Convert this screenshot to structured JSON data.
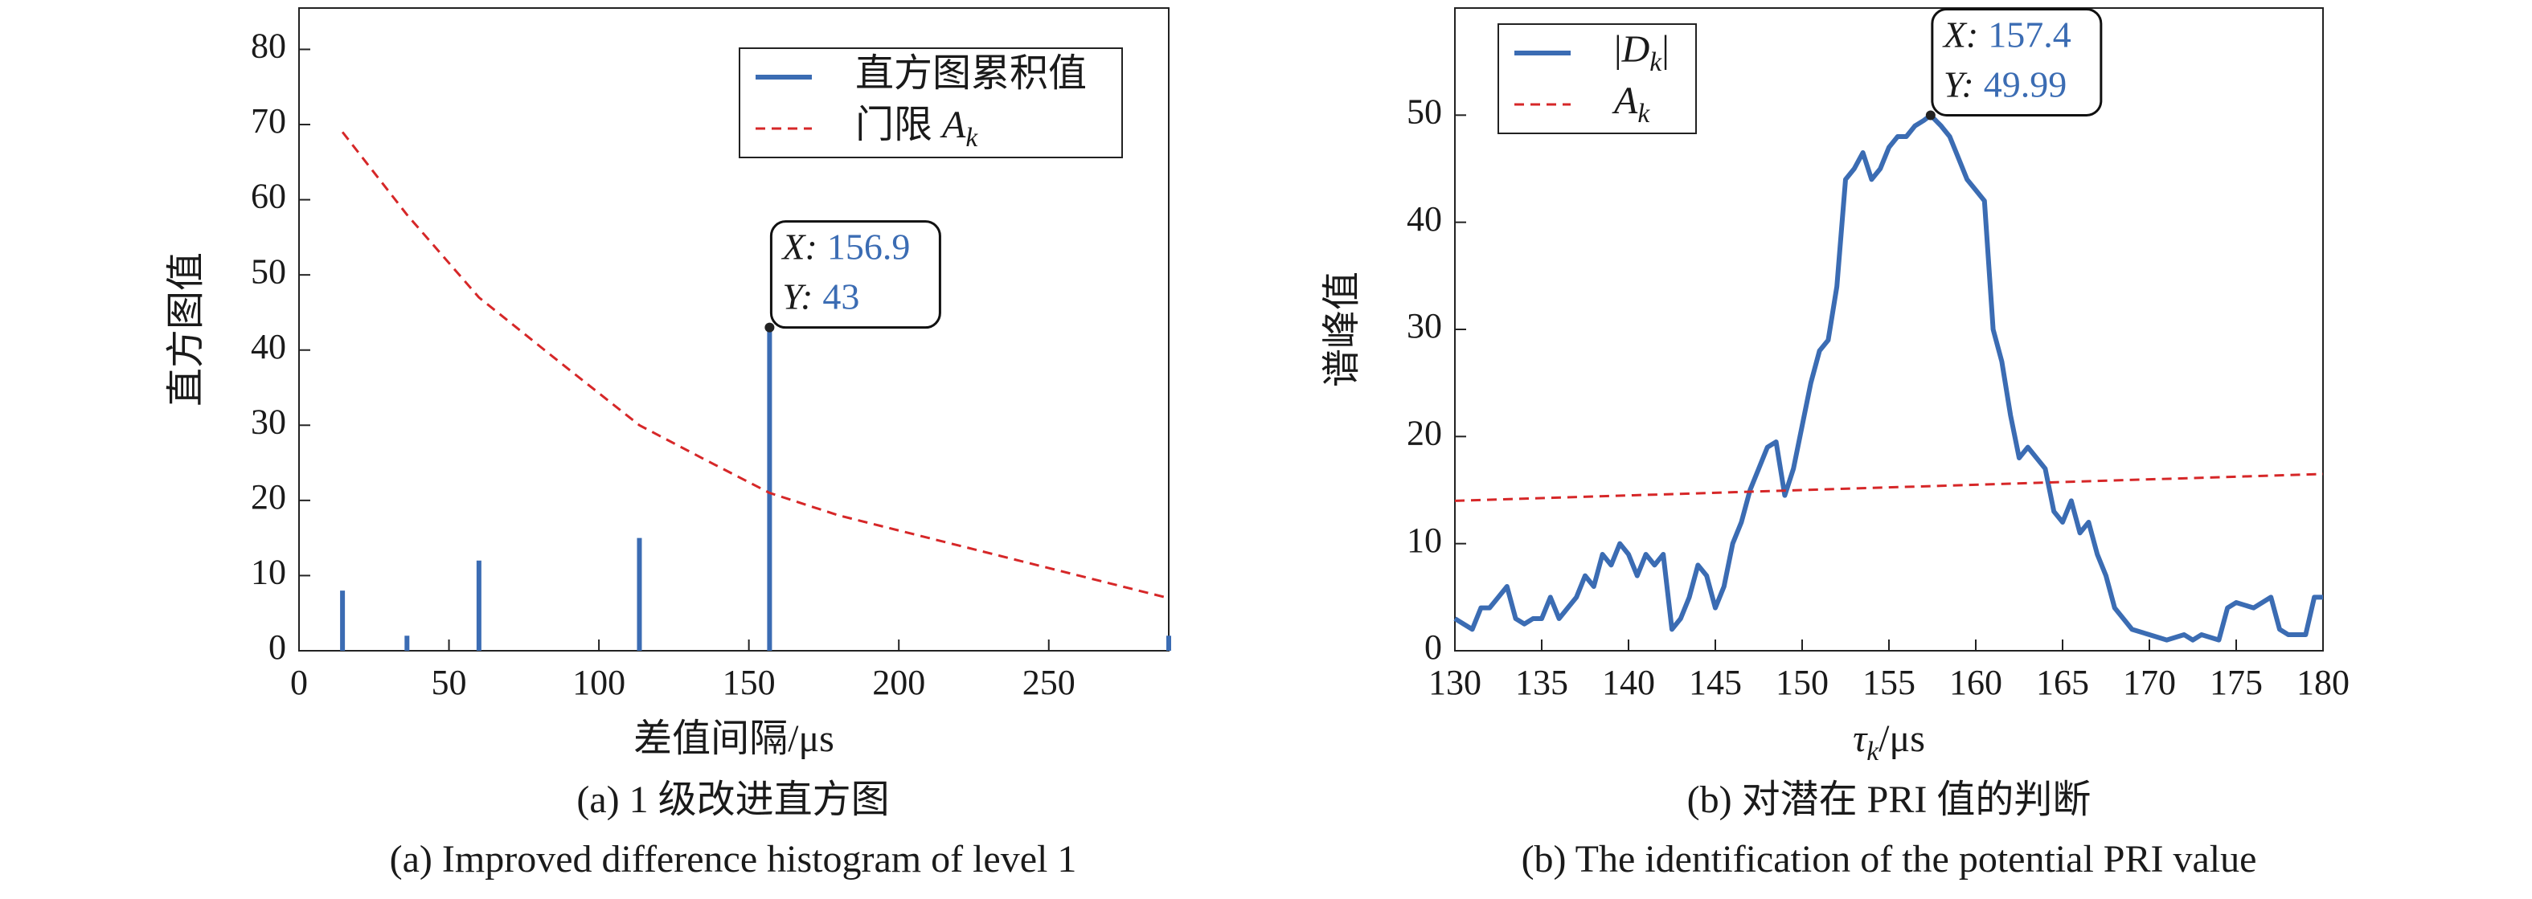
{
  "chart_data": [
    {
      "type": "bar",
      "xlabel": "差值间隔/μs",
      "ylabel": "直方图值",
      "caption": "(a) 1 级改进直方图",
      "caption_en": "(a) Improved difference histogram of level 1",
      "xlim": [
        0,
        290
      ],
      "ylim": [
        0,
        85.5
      ],
      "xticks": [
        0,
        50,
        100,
        150,
        200,
        250
      ],
      "yticks": [
        0,
        10,
        20,
        30,
        40,
        50,
        60,
        70,
        80
      ],
      "legend": "upper right",
      "series": [
        {
          "name": "直方图累积值",
          "kind": "stem",
          "color": "#3b6cb3",
          "x": [
            14.5,
            36,
            60,
            113.5,
            156.9,
            290
          ],
          "values": [
            8,
            2,
            12,
            15,
            43,
            2
          ]
        },
        {
          "name": {
            "text": "门限",
            "symbol": "A",
            "subscript": "k"
          },
          "kind": "line",
          "dashed": true,
          "color": "#d62728",
          "x": [
            14.5,
            36,
            60,
            85,
            113.5,
            135,
            156.9,
            180,
            200,
            225,
            250,
            270,
            290
          ],
          "values": [
            69,
            58,
            47,
            39,
            30,
            25.5,
            21,
            18,
            16,
            13.5,
            11,
            9,
            7
          ]
        }
      ],
      "annotation": {
        "x_label": "X:",
        "y_label": "Y:",
        "x": 156.9,
        "y": 43
      }
    },
    {
      "type": "line",
      "xlabel": {
        "symbol": "τ",
        "subscript": "k",
        "suffix": "/μs"
      },
      "ylabel": "谱峰值",
      "caption": "(b) 对潜在 PRI 值的判断",
      "caption_en": "(b) The identification of the potential PRI value",
      "xlim": [
        130,
        180
      ],
      "ylim": [
        0,
        60
      ],
      "xticks": [
        130,
        135,
        140,
        145,
        150,
        155,
        160,
        165,
        170,
        175,
        180
      ],
      "yticks": [
        0,
        10,
        20,
        30,
        40,
        50
      ],
      "legend": "upper left",
      "series": [
        {
          "name": {
            "prefix": "|",
            "symbol": "D",
            "subscript": "k",
            "suffix": "|"
          },
          "kind": "line",
          "color": "#3b6cb3",
          "width": 3,
          "x": [
            130,
            130.5,
            131,
            131.5,
            132,
            132.5,
            133,
            133.5,
            134,
            134.5,
            135,
            135.5,
            136,
            136.5,
            137,
            137.5,
            138,
            138.5,
            139,
            139.5,
            140,
            140.5,
            141,
            141.5,
            142,
            142.5,
            143,
            143.5,
            144,
            144.5,
            145,
            145.5,
            146,
            146.5,
            147,
            147.5,
            148,
            148.5,
            149,
            149.5,
            150,
            150.5,
            151,
            151.5,
            152,
            152.5,
            153,
            153.5,
            154,
            154.5,
            155,
            155.5,
            156,
            156.5,
            157,
            157.4,
            158,
            158.5,
            159,
            159.5,
            160,
            160.5,
            161,
            161.5,
            162,
            162.5,
            163,
            163.5,
            164,
            164.5,
            165,
            165.5,
            166,
            166.5,
            167,
            167.5,
            168,
            168.5,
            169,
            170,
            171,
            172,
            172.5,
            173,
            174,
            174.5,
            175,
            176,
            177,
            177.5,
            178,
            179,
            179.5,
            180
          ],
          "values": [
            3,
            2.5,
            2,
            4,
            4,
            5,
            6,
            3,
            2.5,
            3,
            3,
            5,
            3,
            4,
            5,
            7,
            6,
            9,
            8,
            10,
            9,
            7,
            9,
            8,
            9,
            2,
            3,
            5,
            8,
            7,
            4,
            6,
            10,
            12,
            15,
            17,
            19,
            19.5,
            14.5,
            17,
            21,
            25,
            28,
            29,
            34,
            44,
            45,
            46.5,
            44,
            45,
            47,
            48,
            48,
            49,
            49.5,
            49.99,
            49,
            48,
            46,
            44,
            43,
            42,
            30,
            27,
            22,
            18,
            19,
            18,
            17,
            13,
            12,
            14,
            11,
            12,
            9,
            7,
            4,
            3,
            2,
            1.5,
            1,
            1.5,
            1,
            1.5,
            1,
            4,
            4.5,
            4,
            5,
            2,
            1.5,
            1.5,
            5,
            5
          ]
        },
        {
          "name": {
            "symbol": "A",
            "subscript": "k"
          },
          "kind": "line",
          "dashed": true,
          "color": "#d62728",
          "x": [
            130,
            180
          ],
          "values": [
            14,
            16.5
          ]
        }
      ],
      "annotation": {
        "x_label": "X:",
        "y_label": "Y:",
        "x": 157.4,
        "y": 49.99
      }
    }
  ]
}
